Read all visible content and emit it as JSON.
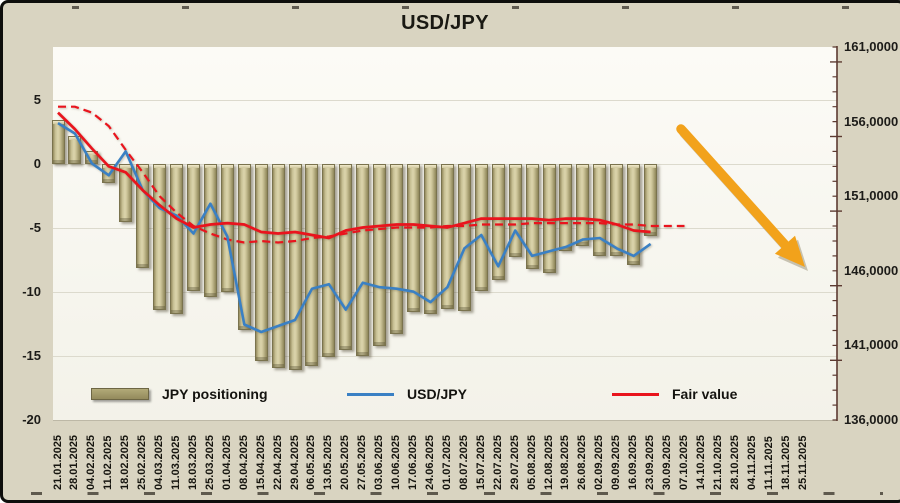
{
  "title": "USD/JPY",
  "legend": {
    "items": [
      {
        "label": "JPY positioning",
        "type": "bar",
        "color": "#A39B68"
      },
      {
        "label": "USD/JPY",
        "type": "line",
        "color": "#3A80C4"
      },
      {
        "label": "Fair value",
        "type": "line",
        "color": "#E9141D"
      }
    ]
  },
  "y_axis_left": {
    "ticks": [
      "5",
      "0",
      "-5",
      "-10",
      "-15",
      "-20"
    ],
    "values": [
      5,
      0,
      -5,
      -10,
      -15,
      -20
    ]
  },
  "y_axis_right": {
    "ticks": [
      "161,0000",
      "156,0000",
      "151,0000",
      "146,0000",
      "141,0000",
      "136,0000"
    ],
    "values": [
      161,
      156,
      151,
      146,
      141,
      136
    ]
  },
  "colors": {
    "background": "#D9D4C1",
    "plot_background": "#F8F7F0",
    "bar_fill": "#CDC59A",
    "bar_border": "#7A734E",
    "usdjpy_line": "#3A80C4",
    "fair_value_line": "#E9141D",
    "arrow": "#F2A21B",
    "right_axis_rail": "#5C3A31",
    "gridline": "#DCDACD"
  },
  "annotation": {
    "arrow_direction": "down-right",
    "arrow_color": "#F2A21B"
  },
  "chart_data": {
    "type": "combo_bar_line",
    "title": "USD/JPY",
    "grid": true,
    "legend_position": "bottom-inside",
    "x_tick_rotation": 90,
    "ylim_left": [
      -20,
      9
    ],
    "ylim_right": [
      136,
      161
    ],
    "categories": [
      "21.01.2025",
      "28.01.2025",
      "04.02.2025",
      "11.02.2025",
      "18.02.2025",
      "25.02.2025",
      "04.03.2025",
      "11.03.2025",
      "18.03.2025",
      "25.03.2025",
      "01.04.2025",
      "08.04.2025",
      "15.04.2025",
      "22.04.2025",
      "29.04.2025",
      "06.05.2025",
      "13.05.2025",
      "20.05.2025",
      "27.05.2025",
      "03.06.2025",
      "10.06.2025",
      "17.06.2025",
      "24.06.2025",
      "01.07.2025",
      "08.07.2025",
      "15.07.2025",
      "22.07.2025",
      "29.07.2025",
      "05.08.2025",
      "12.08.2025",
      "19.08.2025",
      "26.08.2025",
      "02.09.2025",
      "09.09.2025",
      "16.09.2025",
      "23.09.2025",
      "30.09.2025",
      "07.10.2025",
      "14.10.2025",
      "21.10.2025",
      "28.10.2025",
      "04.11.2025",
      "11.11.2025",
      "18.11.2025",
      "25.11.2025"
    ],
    "series": [
      {
        "name": "JPY positioning",
        "type": "bar",
        "axis": "left",
        "color": "#CDC59A",
        "values": [
          3.4,
          2.2,
          1.0,
          -1.5,
          -4.5,
          -8.1,
          -11.4,
          -11.7,
          -9.9,
          -10.4,
          -10.0,
          -13.0,
          -15.4,
          -15.9,
          -16.1,
          -15.8,
          -15.1,
          -14.5,
          -15.0,
          -14.2,
          -13.3,
          -11.6,
          -11.7,
          -11.3,
          -11.5,
          -9.9,
          -9.1,
          -7.3,
          -8.2,
          -8.5,
          -6.8,
          -6.4,
          -7.2,
          -7.2,
          -7.9,
          -5.6
        ]
      },
      {
        "name": "USD/JPY",
        "type": "line",
        "axis": "right",
        "color": "#3A80C4",
        "values": [
          155.9,
          155.2,
          153.2,
          152.4,
          154.0,
          151.4,
          150.2,
          149.7,
          148.5,
          150.5,
          148.3,
          142.4,
          141.9,
          142.3,
          142.7,
          144.8,
          145.1,
          143.4,
          145.2,
          144.9,
          144.8,
          144.6,
          143.9,
          144.9,
          147.5,
          148.4,
          146.3,
          148.7,
          147.0,
          147.3,
          147.6,
          148.1,
          148.2,
          147.5,
          147.0,
          147.8
        ]
      },
      {
        "name": "Fair value",
        "type": "line",
        "axis": "right",
        "color": "#E9141D",
        "values": [
          156.6,
          155.5,
          154.2,
          153.0,
          152.6,
          151.4,
          150.4,
          149.5,
          148.9,
          149.1,
          149.2,
          149.1,
          148.6,
          148.5,
          148.6,
          148.4,
          148.2,
          148.7,
          148.9,
          149.0,
          149.1,
          149.1,
          149.0,
          148.9,
          149.2,
          149.5,
          149.5,
          149.5,
          149.5,
          149.4,
          149.5,
          149.5,
          149.4,
          149.1,
          148.7,
          148.6
        ]
      },
      {
        "name": "Fair value trend (dashed)",
        "type": "line-dashed",
        "axis": "right",
        "color": "#E9141D",
        "values": [
          157.0,
          157.0,
          156.6,
          155.7,
          154.1,
          152.6,
          151.0,
          149.9,
          149.0,
          148.5,
          148.1,
          147.9,
          148.0,
          147.9,
          148.0,
          148.2,
          148.3,
          148.5,
          148.7,
          148.8,
          148.9,
          148.9,
          148.9,
          149.0,
          149.0,
          149.1,
          149.1,
          149.1,
          149.2,
          149.2,
          149.2,
          149.2,
          149.2,
          149.1,
          149.1,
          149.0,
          149.0,
          149.0
        ]
      }
    ]
  }
}
